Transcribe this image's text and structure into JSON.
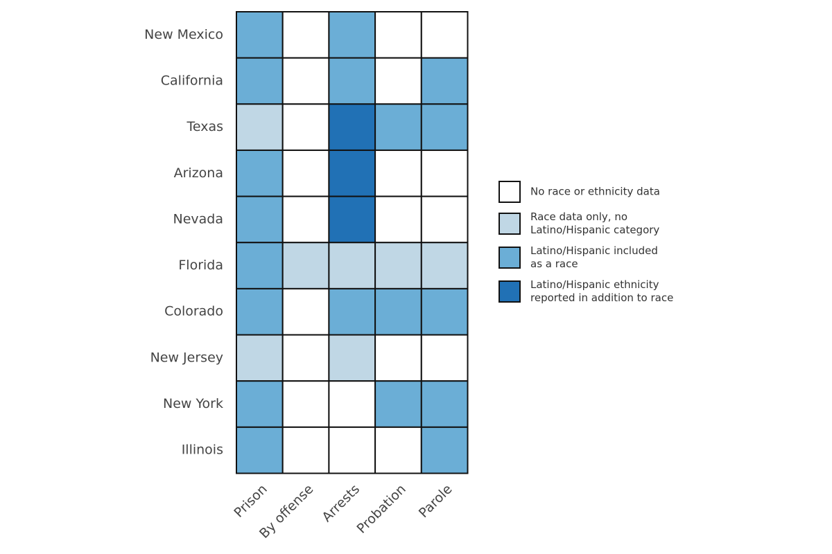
{
  "chart_data": {
    "type": "heatmap",
    "rows": [
      "New Mexico",
      "California",
      "Texas",
      "Arizona",
      "Nevada",
      "Florida",
      "Colorado",
      "New Jersey",
      "New York",
      "Illinois"
    ],
    "columns": [
      "Prison",
      "By offense",
      "Arrests",
      "Probation",
      "Parole"
    ],
    "values": [
      [
        2,
        0,
        2,
        0,
        0
      ],
      [
        2,
        0,
        2,
        0,
        2
      ],
      [
        1,
        0,
        3,
        2,
        2
      ],
      [
        2,
        0,
        3,
        0,
        0
      ],
      [
        2,
        0,
        3,
        0,
        0
      ],
      [
        2,
        1,
        1,
        1,
        1
      ],
      [
        2,
        0,
        2,
        2,
        2
      ],
      [
        1,
        0,
        1,
        0,
        0
      ],
      [
        2,
        0,
        0,
        2,
        2
      ],
      [
        2,
        0,
        0,
        0,
        2
      ]
    ],
    "legend": [
      {
        "color": "#ffffff",
        "lines": [
          "No race or ethnicity data"
        ]
      },
      {
        "color": "#c0d7e5",
        "lines": [
          "Race data only, no",
          "Latino/Hispanic category"
        ]
      },
      {
        "color": "#6baed6",
        "lines": [
          "Latino/Hispanic included",
          "as a race"
        ]
      },
      {
        "color": "#2171b5",
        "lines": [
          "Latino/Hispanic ethnicity",
          "reported in addition to race"
        ]
      }
    ]
  }
}
